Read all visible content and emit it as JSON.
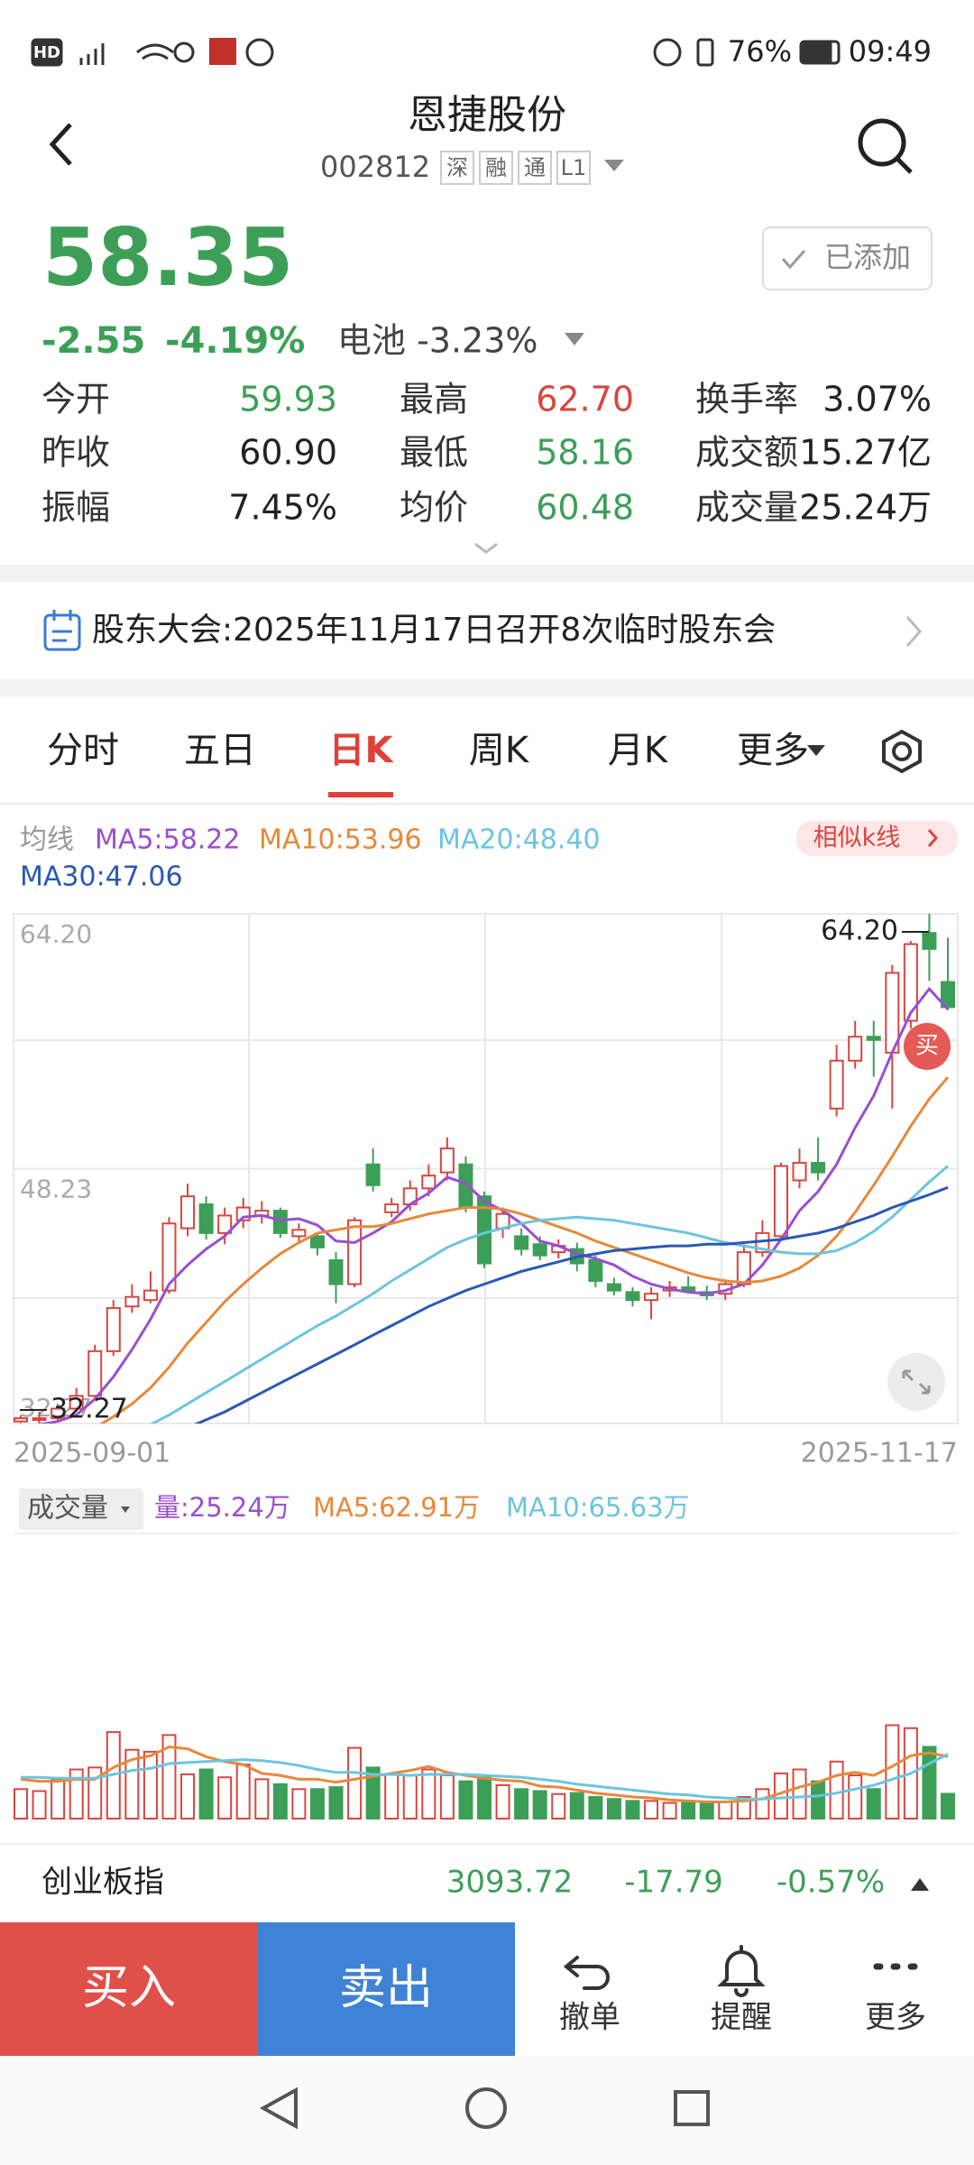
{
  "status_bar": {
    "hd": "HD",
    "battery": "76%",
    "time": "09:49"
  },
  "header": {
    "title": "恩捷股份",
    "code": "002812",
    "tags": [
      "深",
      "融",
      "通",
      "L1"
    ]
  },
  "quote": {
    "price": "58.35",
    "change": "-2.55",
    "change_pct": "-4.19%",
    "sector": "电池 -3.23%",
    "added_button": "已添加"
  },
  "stats": [
    [
      {
        "label": "今开",
        "value": "59.93",
        "tone": "down"
      },
      {
        "label": "最高",
        "value": "62.70",
        "tone": "up"
      },
      {
        "label": "换手率",
        "value": "3.07%",
        "tone": "flat"
      }
    ],
    [
      {
        "label": "昨收",
        "value": "60.90",
        "tone": "flat"
      },
      {
        "label": "最低",
        "value": "58.16",
        "tone": "down"
      },
      {
        "label": "成交额",
        "value": "15.27亿",
        "tone": "flat"
      }
    ],
    [
      {
        "label": "振幅",
        "value": "7.45%",
        "tone": "flat"
      },
      {
        "label": "均价",
        "value": "60.48",
        "tone": "down"
      },
      {
        "label": "成交量",
        "value": "25.24万",
        "tone": "flat"
      }
    ]
  ],
  "notice": "股东大会:2025年11月17日召开8次临时股东会",
  "tabs": [
    "分时",
    "五日",
    "日K",
    "周K",
    "月K",
    "更多"
  ],
  "active_tab": 2,
  "chart_data": {
    "type": "candlestick",
    "ma_label": "均线",
    "similar_button": "相似k线",
    "buy_marker": "买",
    "up_color": "#d8463f",
    "down_color": "#3d9f57",
    "categories": [
      "2025-09-01",
      null,
      null,
      null,
      null,
      null,
      null,
      null,
      null,
      null,
      null,
      null,
      null,
      null,
      null,
      null,
      null,
      null,
      null,
      null,
      null,
      null,
      null,
      null,
      null,
      null,
      null,
      null,
      null,
      null,
      null,
      null,
      null,
      null,
      null,
      null,
      null,
      null,
      null,
      null,
      null,
      null,
      null,
      null,
      null,
      null,
      null,
      null,
      null,
      null,
      "2025-11-17"
    ],
    "open": [
      32.4,
      32.5,
      32.6,
      33.2,
      34.0,
      36.8,
      39.6,
      40.0,
      40.6,
      44.5,
      46.0,
      44.2,
      45.0,
      45.3,
      45.6,
      44.0,
      44.0,
      42.5,
      41.0,
      48.5,
      45.5,
      46.0,
      47.0,
      48.0,
      48.5,
      46.5,
      44.5,
      44.0,
      43.5,
      43.0,
      43.2,
      42.5,
      41.0,
      40.5,
      40.0,
      40.6,
      40.8,
      40.5,
      40.4,
      41.0,
      43.0,
      44.0,
      47.5,
      48.6,
      52.0,
      55.0,
      56.5,
      55.5,
      57.5,
      63.0,
      59.93
    ],
    "close": [
      32.6,
      32.6,
      33.2,
      34.0,
      36.8,
      39.5,
      40.2,
      40.6,
      44.8,
      46.5,
      44.2,
      45.3,
      45.8,
      45.6,
      44.2,
      44.4,
      43.3,
      41.0,
      45.0,
      47.2,
      46.0,
      47.0,
      47.8,
      49.5,
      45.8,
      42.3,
      45.4,
      43.2,
      42.8,
      43.4,
      42.3,
      41.2,
      40.6,
      40.0,
      40.4,
      40.8,
      40.6,
      40.3,
      41.0,
      43.0,
      44.2,
      48.4,
      48.6,
      48.0,
      55.0,
      56.5,
      56.3,
      60.5,
      62.3,
      62.0,
      58.35
    ],
    "high": [
      32.8,
      33.0,
      33.5,
      34.5,
      37.2,
      40.0,
      41.0,
      41.8,
      45.2,
      47.3,
      46.5,
      45.8,
      46.4,
      46.2,
      45.8,
      44.8,
      44.2,
      43.0,
      45.2,
      49.5,
      46.4,
      47.5,
      48.5,
      50.2,
      49.0,
      46.8,
      45.8,
      44.5,
      44.0,
      43.8,
      43.6,
      42.8,
      41.4,
      40.8,
      40.8,
      41.2,
      41.5,
      40.9,
      41.3,
      43.5,
      45.0,
      48.6,
      49.5,
      50.2,
      56.0,
      57.5,
      57.5,
      61.0,
      62.5,
      64.2,
      62.7
    ],
    "low": [
      32.3,
      32.27,
      32.4,
      33.0,
      33.8,
      36.5,
      39.2,
      39.8,
      40.4,
      44.0,
      43.8,
      43.5,
      44.5,
      44.8,
      43.9,
      43.6,
      42.8,
      39.8,
      40.8,
      46.8,
      45.2,
      45.6,
      46.5,
      47.5,
      45.5,
      42.0,
      43.9,
      42.8,
      42.5,
      42.6,
      41.8,
      40.8,
      40.3,
      39.6,
      38.8,
      40.2,
      40.4,
      40.0,
      40.0,
      40.8,
      42.7,
      43.8,
      47.0,
      47.5,
      51.5,
      54.5,
      54.0,
      52.0,
      57.0,
      60.0,
      58.16
    ],
    "ma": [
      {
        "name": "MA5:58.22",
        "color": "#9a4fcf",
        "values": [
          32.0,
          32.2,
          32.4,
          32.8,
          33.8,
          35.2,
          36.9,
          38.8,
          41.0,
          42.2,
          43.2,
          44.0,
          45.2,
          45.3,
          45.0,
          45.1,
          44.7,
          43.7,
          43.6,
          44.2,
          44.9,
          46.0,
          46.7,
          47.7,
          47.3,
          46.2,
          45.6,
          44.8,
          43.7,
          43.4,
          42.9,
          42.6,
          42.2,
          41.5,
          41.0,
          40.7,
          40.5,
          40.4,
          40.6,
          41.0,
          42.2,
          43.8,
          45.6,
          46.8,
          48.5,
          50.8,
          52.8,
          55.5,
          58.0,
          59.5,
          58.22
        ]
      },
      {
        "name": "MA10:53.96",
        "color": "#e6893a",
        "values": [
          30.8,
          31.0,
          31.3,
          31.6,
          32.0,
          32.7,
          33.5,
          34.5,
          35.8,
          37.3,
          38.6,
          39.9,
          41.0,
          42.0,
          42.9,
          43.6,
          44.2,
          44.4,
          44.6,
          44.6,
          44.8,
          45.1,
          45.4,
          45.6,
          45.8,
          45.8,
          45.7,
          45.4,
          45.0,
          44.6,
          44.2,
          43.7,
          43.3,
          42.9,
          42.5,
          42.1,
          41.7,
          41.4,
          41.2,
          41.1,
          41.2,
          41.5,
          42.0,
          42.8,
          44.0,
          45.5,
          47.2,
          49.0,
          50.9,
          52.6,
          53.96
        ]
      },
      {
        "name": "MA20:48.40",
        "color": "#6cc5df",
        "values": [
          29.8,
          30.0,
          30.2,
          30.5,
          30.8,
          31.2,
          31.7,
          32.2,
          32.8,
          33.5,
          34.2,
          34.9,
          35.6,
          36.3,
          37.0,
          37.7,
          38.4,
          39.0,
          39.7,
          40.4,
          41.2,
          41.9,
          42.6,
          43.3,
          43.8,
          44.2,
          44.5,
          44.8,
          45.0,
          45.1,
          45.2,
          45.1,
          45.0,
          44.8,
          44.6,
          44.4,
          44.2,
          43.9,
          43.6,
          43.4,
          43.2,
          43.0,
          42.9,
          42.9,
          43.1,
          43.6,
          44.3,
          45.2,
          46.3,
          47.4,
          48.4
        ]
      },
      {
        "name": "MA30:47.06",
        "color": "#2a58b3",
        "values": [
          29.0,
          29.3,
          29.6,
          29.9,
          30.2,
          30.5,
          30.8,
          31.2,
          31.6,
          32.0,
          32.5,
          33.0,
          33.6,
          34.2,
          34.8,
          35.4,
          36.0,
          36.6,
          37.2,
          37.8,
          38.4,
          39.0,
          39.6,
          40.1,
          40.6,
          41.0,
          41.4,
          41.8,
          42.1,
          42.4,
          42.7,
          42.9,
          43.1,
          43.2,
          43.3,
          43.4,
          43.4,
          43.5,
          43.5,
          43.6,
          43.7,
          43.8,
          44.0,
          44.2,
          44.5,
          44.9,
          45.3,
          45.8,
          46.2,
          46.6,
          47.06
        ]
      }
    ],
    "ylim": [
      32.27,
      64.2
    ],
    "yticks": [
      {
        "value": 64.2,
        "label": "64.20"
      },
      {
        "value": 48.235,
        "label": "48.23"
      },
      {
        "value": 32.27,
        "label": "32.27"
      }
    ],
    "high_marker": {
      "value": 64.2,
      "label": "64.20"
    },
    "low_marker": {
      "value": 32.27,
      "label": "32.27"
    },
    "volume": {
      "label": "成交量",
      "ylim": [
        0,
        290
      ],
      "values": [
        30,
        28,
        40,
        50,
        52,
        88,
        70,
        68,
        85,
        45,
        50,
        42,
        55,
        40,
        35,
        30,
        30,
        32,
        72,
        52,
        45,
        44,
        50,
        44,
        38,
        42,
        34,
        30,
        28,
        25,
        26,
        22,
        20,
        18,
        18,
        16,
        17,
        16,
        17,
        22,
        30,
        46,
        50,
        38,
        58,
        44,
        30,
        95,
        92,
        73,
        25.24
      ],
      "legend": [
        {
          "text": "量:25.24万",
          "color": "#9a4fcf"
        },
        {
          "text": "MA5:62.91万",
          "color": "#e6893a"
        },
        {
          "text": "MA10:65.63万",
          "color": "#6cc5df"
        }
      ],
      "ma": [
        {
          "color": "#e6893a",
          "values": [
            40,
            38,
            38,
            40,
            40,
            52,
            60,
            64,
            73,
            71,
            63,
            58,
            55,
            46,
            44,
            40,
            40,
            37,
            40,
            43,
            46,
            49,
            53,
            47,
            44,
            41,
            39,
            38,
            33,
            32,
            29,
            26,
            24,
            22,
            21,
            19,
            18,
            17,
            17,
            18,
            20,
            26,
            32,
            37,
            44,
            47,
            44,
            53,
            64,
            67,
            62.91
          ]
        },
        {
          "color": "#6cc5df",
          "values": [
            42,
            42,
            41,
            41,
            41,
            45,
            49,
            51,
            56,
            57,
            58,
            59,
            60,
            59,
            57,
            54,
            50,
            47,
            47,
            45,
            45,
            44,
            45,
            45,
            45,
            44,
            43,
            42,
            40,
            38,
            35,
            33,
            31,
            29,
            27,
            25,
            24,
            22,
            21,
            20,
            20,
            21,
            22,
            23,
            26,
            30,
            34,
            40,
            46,
            56,
            65.63
          ]
        }
      ]
    }
  },
  "index_bar": {
    "name": "创业板指",
    "value": "3093.72",
    "change": "-17.79",
    "change_pct": "-0.57%"
  },
  "actions": {
    "buy": "买入",
    "sell": "卖出",
    "buttons": [
      "撤单",
      "提醒",
      "更多"
    ]
  }
}
